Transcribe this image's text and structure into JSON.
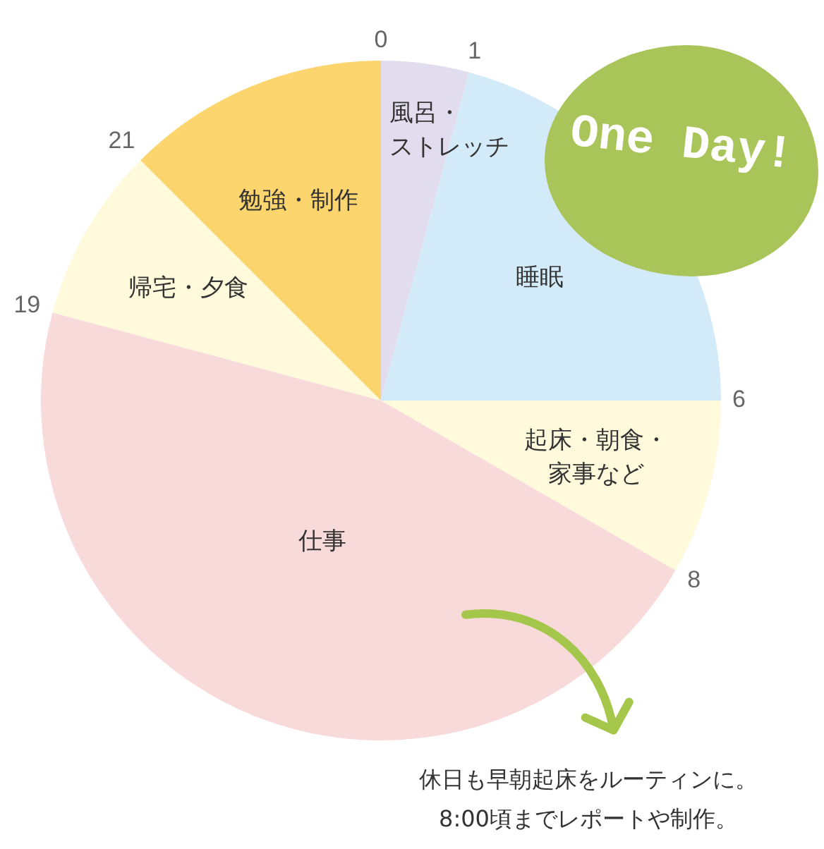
{
  "chart_data": {
    "type": "pie",
    "title": "One Day!",
    "categories": [
      "風呂・ストレッチ",
      "睡眠",
      "起床・朝食・家事など",
      "仕事",
      "帰宅・夕食",
      "勉強・制作"
    ],
    "values": [
      4.17,
      20.83,
      8.33,
      45.84,
      8.33,
      12.5
    ],
    "colors": [
      "#e1dcee",
      "#d3ebf9",
      "#fefadb",
      "#f9dada",
      "#fefadb",
      "#fcd56e"
    ],
    "annotations": [
      "0",
      "1",
      "6",
      "8",
      "19",
      "21",
      "休日も早朝起床をルーティンに。\n8:00頃までレポートや制作。"
    ]
  }
}
